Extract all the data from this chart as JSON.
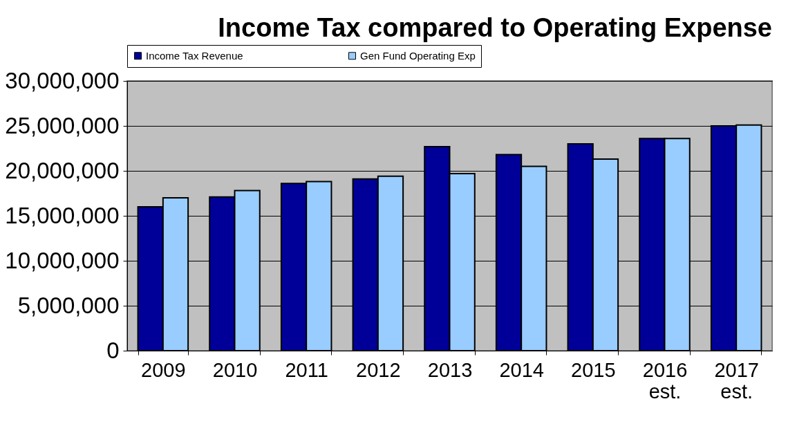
{
  "chart_data": {
    "type": "bar",
    "title": "Income Tax compared to Operating Expense",
    "categories": [
      "2009",
      "2010",
      "2011",
      "2012",
      "2013",
      "2014",
      "2015",
      "2016 est.",
      "2017 est."
    ],
    "series": [
      {
        "name": "Income Tax Revenue",
        "color": "#000099",
        "values": [
          16000000,
          17100000,
          18600000,
          19100000,
          22700000,
          21800000,
          23000000,
          23600000,
          25000000
        ]
      },
      {
        "name": "Gen Fund Operating Exp",
        "color": "#99ccff",
        "values": [
          17000000,
          17800000,
          18800000,
          19400000,
          19700000,
          20500000,
          21300000,
          23600000,
          25100000
        ]
      }
    ],
    "ylim": [
      0,
      30000000
    ],
    "yticks": [
      0,
      {
        "value": 5000000,
        "label": "5,000,000"
      },
      {
        "value": 10000000,
        "label": "10,000,000"
      },
      {
        "value": 15000000,
        "label": "15,000,000"
      },
      {
        "value": 20000000,
        "label": "20,000,000"
      },
      {
        "value": 25000000,
        "label": "25,000,000"
      },
      {
        "value": 30000000,
        "label": "30,000,000"
      }
    ],
    "grid": "y",
    "legend": "top"
  }
}
